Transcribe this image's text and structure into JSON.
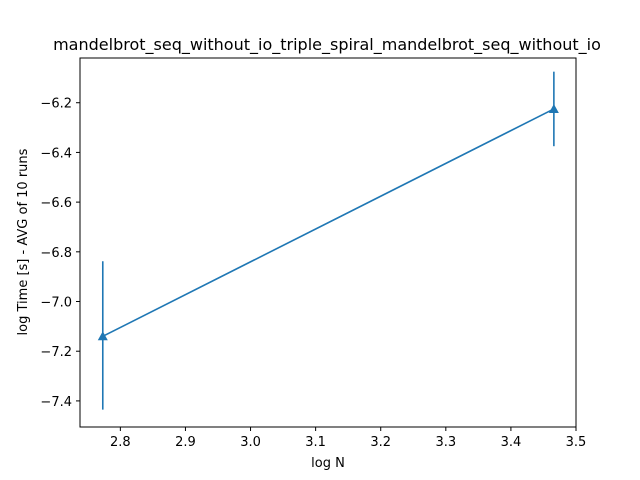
{
  "chart_data": {
    "type": "line",
    "title": "mandelbrot_seq_without_io_triple_spiral_mandelbrot_seq_without_io",
    "xlabel": "log N",
    "ylabel": "log Time  [s] - AVG of 10 runs",
    "xlim": [
      2.738,
      3.5
    ],
    "ylim": [
      -7.505,
      -6.02
    ],
    "xticks": [
      2.8,
      2.9,
      3.0,
      3.1,
      3.2,
      3.3,
      3.4,
      3.5
    ],
    "yticks": [
      -7.4,
      -7.2,
      -7.0,
      -6.8,
      -6.6,
      -6.4,
      -6.2
    ],
    "grid": false,
    "series": [
      {
        "color": "#1f77b4",
        "marker": "triangle",
        "x": [
          2.773,
          3.466
        ],
        "y": [
          -7.14,
          -6.225
        ],
        "yerr_low": [
          -7.435,
          -6.375
        ],
        "yerr_high": [
          -6.838,
          -6.075
        ]
      }
    ]
  }
}
